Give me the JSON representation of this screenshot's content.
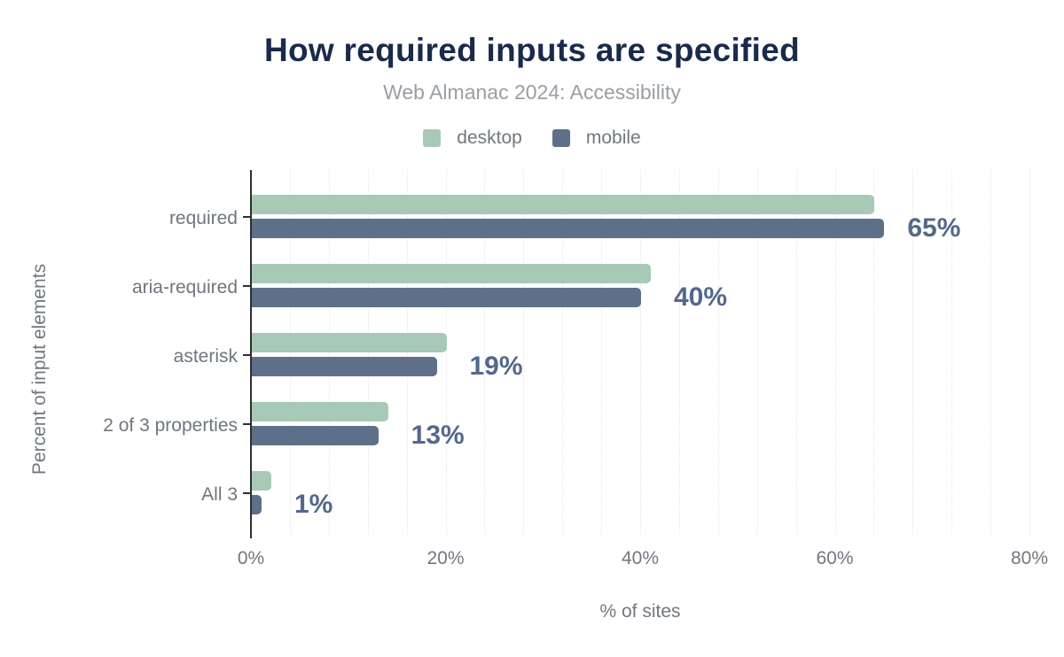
{
  "header": {
    "title": "How required inputs are specified",
    "subtitle": "Web Almanac 2024: Accessibility"
  },
  "chart_data": {
    "type": "bar",
    "orientation": "horizontal",
    "title": "How required inputs are specified",
    "subtitle": "Web Almanac 2024: Accessibility",
    "categories": [
      "required",
      "aria-required",
      "asterisk",
      "2 of 3 properties",
      "All 3"
    ],
    "series": [
      {
        "name": "desktop",
        "color": "#a8c9b5",
        "values": [
          64,
          41,
          20,
          14,
          2
        ]
      },
      {
        "name": "mobile",
        "color": "#5e7089",
        "values": [
          65,
          40,
          19,
          13,
          1
        ]
      }
    ],
    "value_labels": [
      "65%",
      "40%",
      "19%",
      "13%",
      "1%"
    ],
    "value_labels_series": "mobile",
    "xlabel": "% of sites",
    "ylabel": "Percent of input elements",
    "x_ticks": [
      "0%",
      "20%",
      "40%",
      "60%",
      "80%"
    ],
    "x_tick_values": [
      0,
      20,
      40,
      60,
      80
    ],
    "xlim": [
      0,
      80
    ],
    "grid": "vertical",
    "grid_step_pct": 4,
    "legend_position": "top"
  },
  "colors": {
    "title": "#1a2a4b",
    "subtitle": "#999fa6",
    "axis_text": "#71787f",
    "value_label": "#54688b",
    "axis_line": "#2e2e2e",
    "gridline": "#e7e7e7",
    "desktop": "#a8c9b5",
    "mobile": "#5e7089",
    "background": "#ffffff"
  }
}
